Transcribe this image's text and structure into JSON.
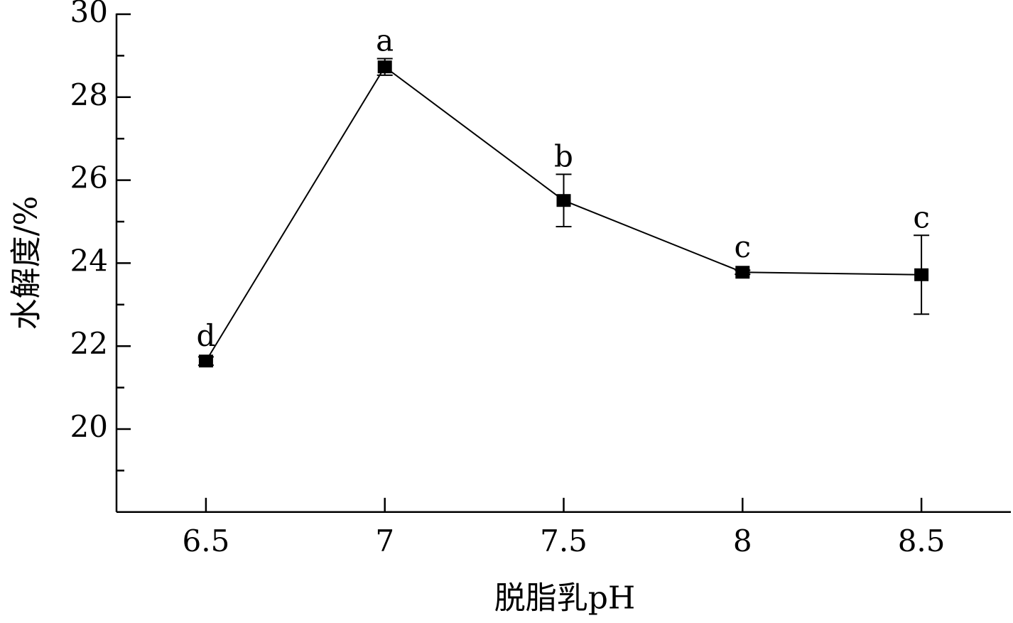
{
  "chart_data": {
    "type": "line",
    "x_label": "脱脂乳pH",
    "y_label": "水解度/%",
    "x": [
      6.5,
      7,
      7.5,
      8,
      8.5
    ],
    "series": [
      {
        "color": "#000000",
        "values": [
          21.64,
          28.73,
          25.51,
          23.78,
          23.72
        ],
        "errors": [
          0.1,
          0.2,
          0.63,
          0.05,
          0.95
        ]
      }
    ],
    "annotations": [
      "d",
      "a",
      "b",
      "c",
      "c"
    ],
    "xlim": [
      6.25,
      8.75
    ],
    "xticks": [
      6.5,
      7,
      7.5,
      8,
      8.5
    ],
    "ylim": [
      18,
      30
    ],
    "yticks": [
      20,
      22,
      24,
      26,
      28,
      30
    ],
    "y_minor_ticks": [
      19,
      21,
      23,
      25,
      27,
      29
    ]
  }
}
